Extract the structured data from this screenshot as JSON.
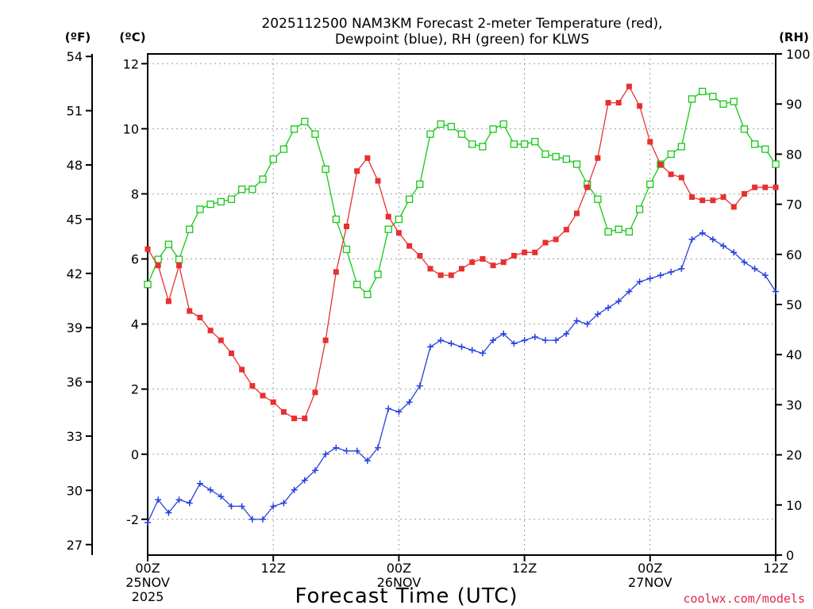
{
  "chart_data": {
    "type": "line",
    "title_lines": [
      "2025112500 NAM3KM Forecast 2-meter Temperature (red),",
      "Dewpoint (blue), RH (green) for KLWS"
    ],
    "xlabel": "Forecast Time (UTC)",
    "credit": "coolwx.com/models",
    "x_hours": [
      0,
      1,
      2,
      3,
      4,
      5,
      6,
      7,
      8,
      9,
      10,
      11,
      12,
      13,
      14,
      15,
      16,
      17,
      18,
      19,
      20,
      21,
      22,
      23,
      24,
      25,
      26,
      27,
      28,
      29,
      30,
      31,
      32,
      33,
      34,
      35,
      36,
      37,
      38,
      39,
      40,
      41,
      42,
      43,
      44,
      45,
      46,
      47,
      48,
      49,
      50,
      51,
      52,
      53,
      54,
      55,
      56,
      57,
      58,
      59,
      60
    ],
    "xlim": [
      0,
      60
    ],
    "x_ticks": [
      {
        "hour": 0,
        "lines": [
          "00Z",
          "25NOV",
          "2025"
        ]
      },
      {
        "hour": 12,
        "lines": [
          "12Z"
        ]
      },
      {
        "hour": 24,
        "lines": [
          "00Z",
          "26NOV"
        ]
      },
      {
        "hour": 36,
        "lines": [
          "12Z"
        ]
      },
      {
        "hour": 48,
        "lines": [
          "00Z",
          "27NOV"
        ]
      },
      {
        "hour": 60,
        "lines": [
          "12Z"
        ]
      }
    ],
    "y_left": {
      "label": "(ºC)",
      "ylim": [
        -3.1,
        12.3
      ],
      "ticks": [
        -2,
        0,
        2,
        4,
        6,
        8,
        10,
        12
      ]
    },
    "y_far_left": {
      "label": "(ºF)",
      "ticks": [
        27,
        30,
        33,
        36,
        39,
        42,
        45,
        48,
        51,
        54
      ]
    },
    "y_right": {
      "label": "(RH)",
      "ylim": [
        0,
        100
      ],
      "ticks": [
        0,
        10,
        20,
        30,
        40,
        50,
        60,
        70,
        80,
        90,
        100
      ]
    },
    "series": [
      {
        "name": "Temperature",
        "unit": "C",
        "color": "#e83030",
        "marker": "filled-square",
        "values": [
          6.3,
          5.8,
          4.7,
          5.8,
          4.4,
          4.2,
          3.8,
          3.5,
          3.1,
          2.6,
          2.1,
          1.8,
          1.6,
          1.3,
          1.1,
          1.1,
          1.9,
          3.5,
          5.6,
          7.0,
          8.7,
          9.1,
          8.4,
          7.3,
          6.8,
          6.4,
          6.1,
          5.7,
          5.5,
          5.5,
          5.7,
          5.9,
          6.0,
          5.8,
          5.9,
          6.1,
          6.2,
          6.2,
          6.5,
          6.6,
          6.9,
          7.4,
          8.2,
          9.1,
          10.8,
          10.8,
          11.3,
          10.7,
          9.6,
          8.9,
          8.6,
          8.5,
          7.9,
          7.8,
          7.8,
          7.9,
          7.6,
          8.0,
          8.2,
          8.2,
          8.2
        ]
      },
      {
        "name": "Dewpoint",
        "unit": "C",
        "color": "#2540e0",
        "marker": "plus",
        "values": [
          -2.1,
          -1.4,
          -1.8,
          -1.4,
          -1.5,
          -0.9,
          -1.1,
          -1.3,
          -1.6,
          -1.6,
          -2.0,
          -2.0,
          -1.6,
          -1.5,
          -1.1,
          -0.8,
          -0.5,
          0.0,
          0.2,
          0.1,
          0.1,
          -0.2,
          0.2,
          1.4,
          1.3,
          1.6,
          2.1,
          3.3,
          3.5,
          3.4,
          3.3,
          3.2,
          3.1,
          3.5,
          3.7,
          3.4,
          3.5,
          3.6,
          3.5,
          3.5,
          3.7,
          4.1,
          4.0,
          4.3,
          4.5,
          4.7,
          5.0,
          5.3,
          5.4,
          5.5,
          5.6,
          5.7,
          6.6,
          6.8,
          6.6,
          6.4,
          6.2,
          5.9,
          5.7,
          5.5,
          5.0
        ]
      },
      {
        "name": "RH",
        "unit": "%",
        "color": "#14c814",
        "marker": "open-square",
        "values": [
          54,
          59,
          62,
          59,
          65,
          69,
          70,
          70.5,
          71,
          73,
          73,
          75,
          79,
          81,
          85,
          86.5,
          84,
          77,
          67,
          61,
          54,
          52,
          56,
          65,
          67,
          71,
          74,
          84,
          86,
          85.5,
          84,
          82,
          81.5,
          85,
          86,
          82,
          82,
          82.5,
          80,
          79.5,
          79,
          78,
          74,
          71,
          64.5,
          65,
          64.5,
          69,
          74,
          78,
          80,
          81.5,
          91,
          92.5,
          91.5,
          90,
          90.5,
          85,
          82,
          81,
          78
        ]
      }
    ]
  }
}
